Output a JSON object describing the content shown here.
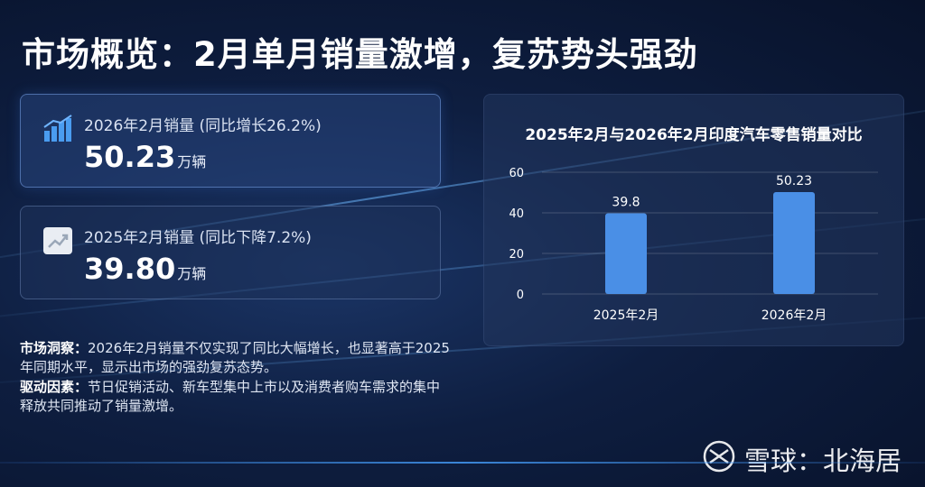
{
  "title": "市场概览：2月单月销量激增，复苏势头强劲",
  "cards": [
    {
      "label": "2026年2月销量 (同比增长26.2%)",
      "value": "50.23",
      "unit": "万辆",
      "icon": "bar-chart-icon"
    },
    {
      "label": "2025年2月销量 (同比下降7.2%)",
      "value": "39.80",
      "unit": "万辆",
      "icon": "trend-chart-icon"
    }
  ],
  "notes": [
    {
      "heading": "市场洞察：",
      "text": "2026年2月销量不仅实现了同比大幅增长，也显著高于2025年同期水平，显示出市场的强劲复苏态势。"
    },
    {
      "heading": "驱动因素：",
      "text": "节日促销活动、新车型集中上市以及消费者购车需求的集中释放共同推动了销量激增。"
    }
  ],
  "chart_data": {
    "type": "bar",
    "title": "2025年2月与2026年2月印度汽车零售销量对比",
    "categories": [
      "2025年2月",
      "2026年2月"
    ],
    "values": [
      39.8,
      50.23
    ],
    "data_labels": [
      "39.8",
      "50.23"
    ],
    "yticks": [
      0,
      20,
      40,
      60
    ],
    "ylim": [
      0,
      60
    ],
    "grid": true,
    "bar_color": "#4a8fe6"
  },
  "watermark": {
    "brand": "雪球：北海居",
    "icon": "snowball-logo-icon"
  }
}
